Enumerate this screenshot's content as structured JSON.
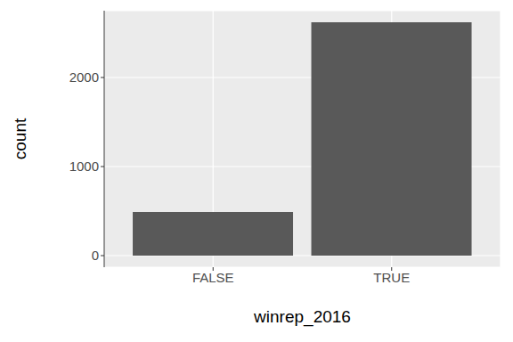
{
  "chart_data": {
    "type": "bar",
    "categories": [
      "FALSE",
      "TRUE"
    ],
    "values": [
      490,
      2620
    ],
    "color": "#595959",
    "x_label": "winrep_2016",
    "y_label": "count",
    "ylim": [
      -130,
      2750
    ],
    "yticks": [
      0,
      1000,
      2000
    ],
    "grid": true
  }
}
